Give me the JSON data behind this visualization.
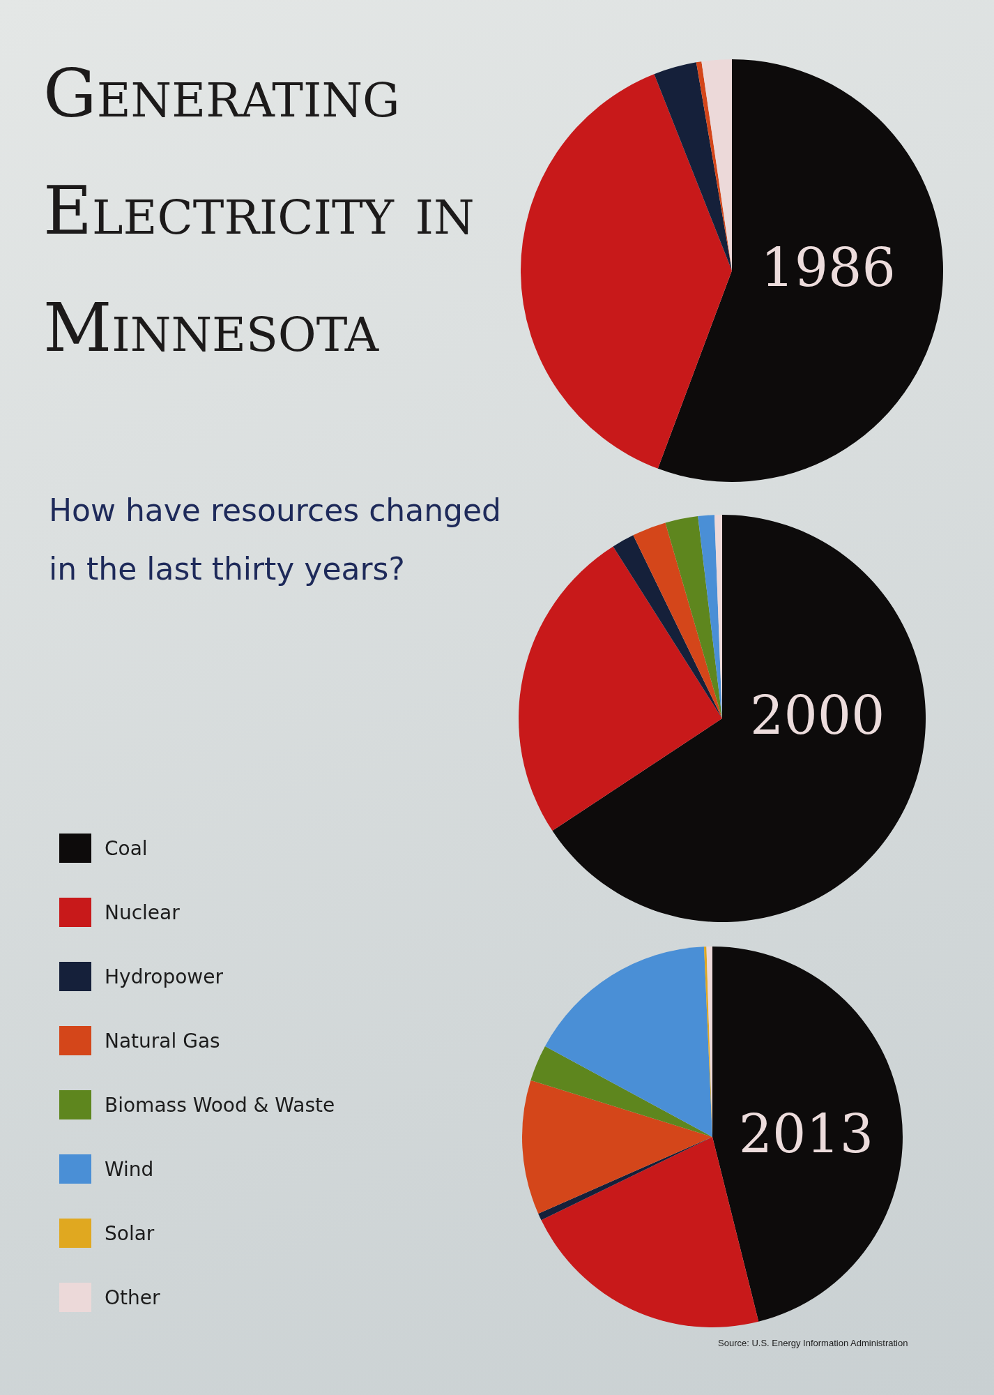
{
  "chart_data": {
    "type": "pie",
    "title": "Generating Electricity in Minnesota",
    "subtitle": "How have resources changed in the last thirty years?",
    "annotations": [
      "Source: U.S. Energy Information Administration"
    ],
    "categories": [
      "Coal",
      "Nuclear",
      "Hydropower",
      "Natural Gas",
      "Biomass Wood & Waste",
      "Wind",
      "Solar",
      "Other"
    ],
    "colors": [
      "#0d0b0b",
      "#c8191a",
      "#15203a",
      "#d4461a",
      "#5e861e",
      "#4a8fd6",
      "#e0a820",
      "#ecd9d9"
    ],
    "legend": "left",
    "series": [
      {
        "name": "1986",
        "values": [
          55.7,
          38.3,
          3.3,
          0.4,
          0,
          0,
          0,
          2.3
        ]
      },
      {
        "name": "2000",
        "values": [
          65.7,
          25.3,
          1.8,
          2.7,
          2.6,
          1.3,
          0,
          0.6
        ]
      },
      {
        "name": "2013",
        "values": [
          46.1,
          21.7,
          0.6,
          11.4,
          3.1,
          16.4,
          0.2,
          0.5
        ]
      }
    ]
  }
}
